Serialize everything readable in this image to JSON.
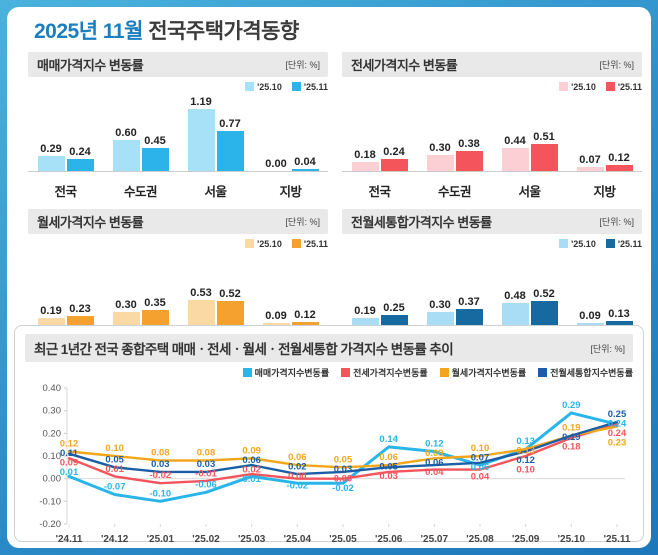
{
  "page_title": {
    "period": "2025년 11월",
    "subject": "전국주택가격동향"
  },
  "unit_label": "[단위: %]",
  "bar_legend": [
    "'25.10",
    "'25.11"
  ],
  "categories": [
    "전국",
    "수도권",
    "서울",
    "지방"
  ],
  "chart_data": [
    {
      "type": "bar",
      "title": "매매가격지수 변동률",
      "unit": "[단위: %]",
      "categories": [
        "전국",
        "수도권",
        "서울",
        "지방"
      ],
      "series": [
        {
          "name": "'25.10",
          "color": "#a6e1f8",
          "values": [
            0.29,
            0.6,
            1.19,
            0.0
          ]
        },
        {
          "name": "'25.11",
          "color": "#2cb3e9",
          "values": [
            0.24,
            0.45,
            0.77,
            0.04
          ]
        }
      ]
    },
    {
      "type": "bar",
      "title": "전세가격지수 변동률",
      "unit": "[단위: %]",
      "categories": [
        "전국",
        "수도권",
        "서울",
        "지방"
      ],
      "series": [
        {
          "name": "'25.10",
          "color": "#fbcfd3",
          "values": [
            0.18,
            0.3,
            0.44,
            0.07
          ]
        },
        {
          "name": "'25.11",
          "color": "#f4555d",
          "values": [
            0.24,
            0.38,
            0.51,
            0.12
          ]
        }
      ]
    },
    {
      "type": "bar",
      "title": "월세가격지수 변동률",
      "unit": "[단위: %]",
      "categories": [
        "전국",
        "수도권",
        "서울",
        "지방"
      ],
      "series": [
        {
          "name": "'25.10",
          "color": "#fbd9a5",
          "values": [
            0.19,
            0.3,
            0.53,
            0.09
          ]
        },
        {
          "name": "'25.11",
          "color": "#f5a12f",
          "values": [
            0.23,
            0.35,
            0.52,
            0.12
          ]
        }
      ]
    },
    {
      "type": "bar",
      "title": "전월세통합가격지수 변동률",
      "unit": "[단위: %]",
      "categories": [
        "전국",
        "수도권",
        "서울",
        "지방"
      ],
      "series": [
        {
          "name": "'25.10",
          "color": "#a9ddf5",
          "values": [
            0.19,
            0.3,
            0.48,
            0.09
          ]
        },
        {
          "name": "'25.11",
          "color": "#176a9f",
          "values": [
            0.25,
            0.37,
            0.52,
            0.13
          ]
        }
      ]
    },
    {
      "type": "line",
      "title": "최근 1년간 전국 종합주택 매매ㆍ전세ㆍ월세ㆍ전월세통합 가격지수 변동률 추이",
      "unit": "[단위: %]",
      "x": [
        "'24.11",
        "'24.12",
        "'25.01",
        "'25.02",
        "'25.03",
        "'25.04",
        "'25.05",
        "'25.06",
        "'25.07",
        "'25.08",
        "'25.09",
        "'25.10",
        "'25.11"
      ],
      "ylim": [
        -0.2,
        0.4
      ],
      "yticks": [
        0.4,
        0.3,
        0.2,
        0.1,
        0.0,
        -0.1,
        -0.2
      ],
      "grid": false,
      "legend_position": "top-right",
      "series": [
        {
          "name": "매매가격지수변동률",
          "color": "#29b5ea",
          "values": [
            0.01,
            -0.07,
            -0.1,
            -0.06,
            0.01,
            -0.02,
            -0.02,
            0.14,
            0.12,
            0.06,
            0.13,
            0.29,
            0.24
          ]
        },
        {
          "name": "전세가격지수변동률",
          "color": "#f4555d",
          "values": [
            0.09,
            0.01,
            -0.02,
            -0.01,
            0.02,
            0.0,
            0.0,
            0.03,
            0.04,
            0.04,
            0.1,
            0.18,
            0.24
          ]
        },
        {
          "name": "월세가격지수변동률",
          "color": "#f2a71b",
          "values": [
            0.12,
            0.1,
            0.08,
            0.08,
            0.09,
            0.06,
            0.05,
            0.06,
            0.09,
            0.1,
            0.13,
            0.19,
            0.23
          ]
        },
        {
          "name": "전월세통합지수변동률",
          "color": "#1b5ea6",
          "values": [
            0.11,
            0.05,
            0.03,
            0.03,
            0.06,
            0.02,
            0.03,
            0.05,
            0.06,
            0.07,
            0.12,
            0.19,
            0.25
          ]
        }
      ]
    }
  ]
}
